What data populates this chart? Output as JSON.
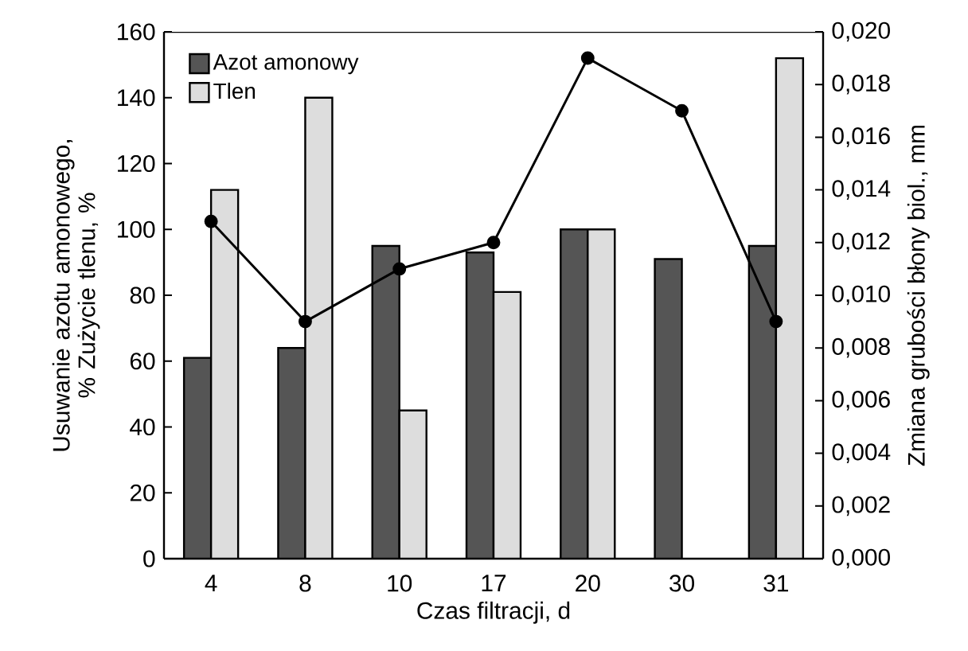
{
  "chart_data": {
    "type": "bar",
    "xlabel": "Czas filtracji, d",
    "ylabel": "Usuwanie azotu amonowego, % Zużycie tlenu, %",
    "y2label": "Zmiana grubości błony biol., mm",
    "categories": [
      "4",
      "8",
      "10",
      "17",
      "20",
      "30",
      "31"
    ],
    "series": [
      {
        "name": "Azot amonowy",
        "color": "#555555",
        "values": [
          61,
          64,
          95,
          93,
          100,
          91,
          95
        ]
      },
      {
        "name": "Tlen",
        "color": "#dddddd",
        "values": [
          112,
          140,
          45,
          81,
          100,
          null,
          152
        ]
      },
      {
        "type": "line",
        "axis": "y2",
        "color": "#000000",
        "values": [
          0.0128,
          0.009,
          0.011,
          0.012,
          0.019,
          0.017,
          0.009
        ]
      }
    ],
    "ylim": [
      0,
      160
    ],
    "yticks": [
      0,
      20,
      40,
      60,
      80,
      100,
      120,
      140,
      160
    ],
    "y2lim": [
      0,
      0.02
    ],
    "y2ticks": [
      {
        "value": 0,
        "label": "0,000"
      },
      {
        "value": 0.002,
        "label": "0,002"
      },
      {
        "value": 0.004,
        "label": "0,004"
      },
      {
        "value": 0.006,
        "label": "0,006"
      },
      {
        "value": 0.008,
        "label": "0,008"
      },
      {
        "value": 0.01,
        "label": "0,010"
      },
      {
        "value": 0.012,
        "label": "0,012"
      },
      {
        "value": 0.014,
        "label": "0,014"
      },
      {
        "value": 0.016,
        "label": "0,016"
      },
      {
        "value": 0.018,
        "label": "0,018"
      },
      {
        "value": 0.02,
        "label": "0,020"
      }
    ],
    "legend": "top left",
    "marker": "circle",
    "line_style": "solid",
    "grid": false
  }
}
